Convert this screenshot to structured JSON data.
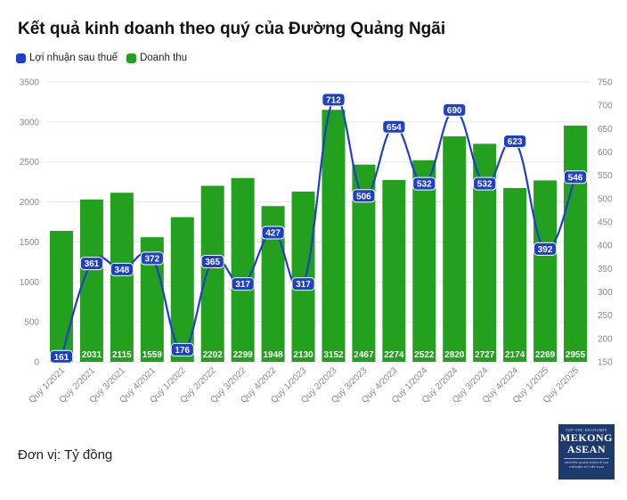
{
  "chart_data": {
    "type": "bar+line",
    "title": "Kết quả kinh doanh theo quý của Đường Quảng Ngãi",
    "unit_note": "Đơn vị: Tỷ đồng",
    "legend_position": "top-left",
    "grid": true,
    "categories": [
      "Quý 1/2021",
      "Quý 2/2021",
      "Quý 3/2021",
      "Quý 4/2021",
      "Quý 1/2022",
      "Quý 2/2022",
      "Quý 3/2022",
      "Quý 4/2022",
      "Quý 1/2023",
      "Quý 2/2023",
      "Quý 3/2023",
      "Quý 4/2023",
      "Quý 1/2024",
      "Quý 2/2024",
      "Quý 3/2024",
      "Quý 4/2024",
      "Quý 1/2025",
      "Quý 2/2025"
    ],
    "y_left": {
      "min": 0,
      "max": 3500,
      "ticks": [
        0,
        500,
        1000,
        1500,
        2000,
        2500,
        3000,
        3500
      ]
    },
    "y_right": {
      "min": 150,
      "max": 750,
      "ticks": [
        150,
        200,
        250,
        300,
        350,
        400,
        450,
        500,
        550,
        600,
        650,
        700,
        750
      ]
    },
    "series": [
      {
        "name": "Lợi nhuận sau thuế",
        "type": "line",
        "axis": "right",
        "color": "#1f3fc4",
        "values": [
          161,
          361,
          348,
          372,
          176,
          365,
          317,
          427,
          317,
          712,
          506,
          654,
          532,
          690,
          532,
          623,
          392,
          546
        ]
      },
      {
        "name": "Doanh thu",
        "type": "bar",
        "axis": "left",
        "color": "#22a01e",
        "values": [
          1638,
          2031,
          2115,
          1559,
          1810,
          2202,
          2299,
          1948,
          2130,
          3152,
          2467,
          2274,
          2522,
          2820,
          2727,
          2174,
          2269,
          2955
        ],
        "labels": [
          "",
          "2031",
          "2115",
          "1559",
          "",
          "2202",
          "2299",
          "1948",
          "2130",
          "3152",
          "2467",
          "2274",
          "2522",
          "2820",
          "2727",
          "2174",
          "2269",
          "2955"
        ]
      }
    ]
  },
  "logo": {
    "top_text": "TOP ONE EKONOMIE",
    "main_line1": "MEKONG",
    "main_line2": "ASEAN",
    "sub_text": "CHUYÊN TRANG KINH TẾ TẠP CHÍ ĐIỆN TỬ VIỆT NAM"
  }
}
